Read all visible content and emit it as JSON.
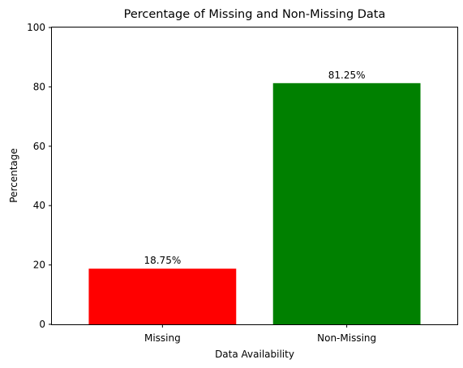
{
  "chart_data": {
    "type": "bar",
    "title": "Percentage of Missing and Non-Missing Data",
    "xlabel": "Data Availability",
    "ylabel": "Percentage",
    "categories": [
      "Missing",
      "Non-Missing"
    ],
    "values": [
      18.75,
      81.25
    ],
    "data_labels": [
      "18.75%",
      "81.25%"
    ],
    "colors": [
      "#ff0000",
      "#008000"
    ],
    "ylim": [
      0,
      100
    ],
    "yticks": [
      "0",
      "20",
      "40",
      "60",
      "80",
      "100"
    ],
    "grid": false,
    "legend": "none"
  }
}
